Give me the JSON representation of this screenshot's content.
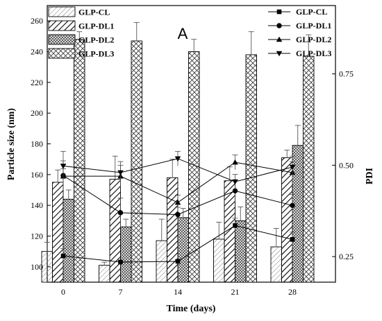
{
  "chart_data": {
    "type": "bar",
    "panel_label": "A",
    "xlabel": "Time (days)",
    "ylabel_left": "Particle size (nm)",
    "ylabel_right": "PDI",
    "categories": [
      "0",
      "7",
      "14",
      "21",
      "28"
    ],
    "ylim_left": [
      90,
      270
    ],
    "yticks_left": [
      100,
      120,
      140,
      160,
      180,
      200,
      220,
      240,
      260
    ],
    "ylim_right": [
      0.18,
      0.937
    ],
    "yticks_right": [
      "0.25",
      "0.50",
      "0.75"
    ],
    "bar_series": [
      {
        "name": "GLP-CL",
        "values": [
          110,
          101,
          117,
          118,
          113
        ],
        "errors": [
          6,
          2,
          14,
          11,
          12
        ],
        "pattern": "diag-light"
      },
      {
        "name": "GLP-DL1",
        "values": [
          155,
          157,
          158,
          156,
          171
        ],
        "errors": [
          8,
          15,
          12,
          9,
          5
        ],
        "pattern": "diag-bold"
      },
      {
        "name": "GLP-DL2",
        "values": [
          144,
          126,
          132,
          130,
          179
        ],
        "errors": [
          6,
          5,
          6,
          9,
          13
        ],
        "pattern": "crosshatch-dense"
      },
      {
        "name": "GLP-DL3",
        "values": [
          248,
          247,
          240,
          238,
          237
        ],
        "errors": [
          5,
          12,
          8,
          15,
          14
        ],
        "pattern": "crosshatch"
      }
    ],
    "line_series": [
      {
        "name": "GLP-CL",
        "marker": "square",
        "values": [
          0.252,
          0.235,
          0.237,
          0.335,
          0.297
        ],
        "errors": [
          0.02,
          0.005,
          0.005,
          0.02,
          0.02
        ]
      },
      {
        "name": "GLP-DL1",
        "marker": "circle",
        "values": [
          0.472,
          0.37,
          0.365,
          0.43,
          0.39
        ],
        "errors": [
          0.04,
          0.04,
          0.02,
          0.03,
          0.03
        ]
      },
      {
        "name": "GLP-DL2",
        "marker": "triangle-up",
        "values": [
          0.47,
          0.47,
          0.398,
          0.508,
          0.48
        ],
        "errors": [
          0.02,
          0.03,
          0.02,
          0.02,
          0.03
        ]
      },
      {
        "name": "GLP-DL3",
        "marker": "triangle-down",
        "values": [
          0.498,
          0.48,
          0.518,
          0.455,
          0.495
        ],
        "errors": [
          0.04,
          0.03,
          0.02,
          0.02,
          0.03
        ]
      }
    ],
    "legend_left_position": "top-left",
    "legend_right_position": "top-right"
  }
}
